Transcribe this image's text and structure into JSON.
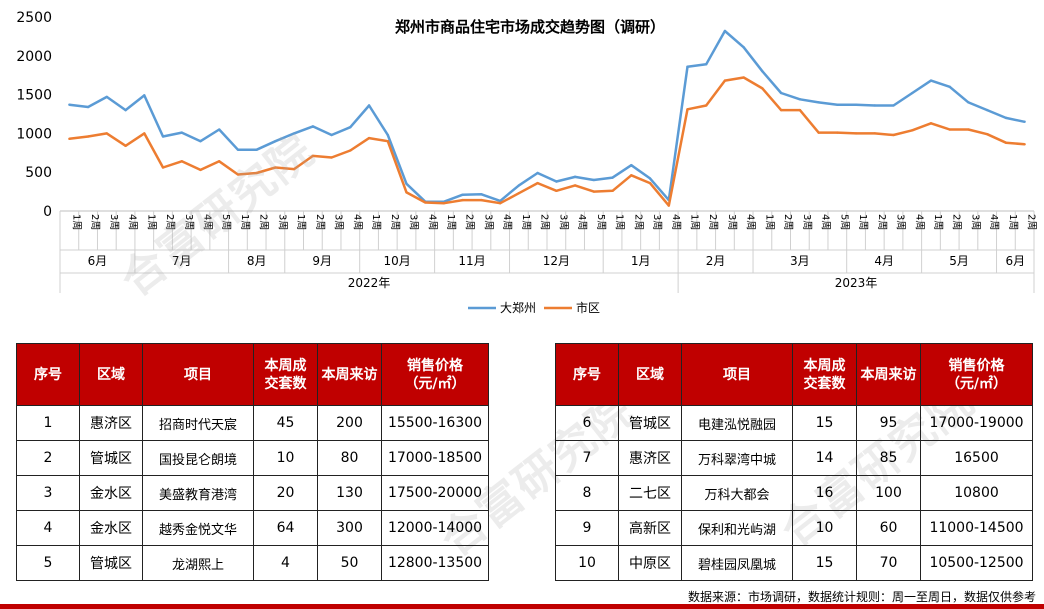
{
  "watermark": "合富研究院",
  "chart_data": {
    "type": "line",
    "title": "郑州市商品住宅市场成交趋势图（调研）",
    "ylim": [
      0,
      2500
    ],
    "yticks": [
      0,
      500,
      1000,
      1500,
      2000,
      2500
    ],
    "grid": false,
    "legend_position": "bottom",
    "week_labels": [
      "1周",
      "2周",
      "3周",
      "4周",
      "1周",
      "2周",
      "3周",
      "4周",
      "5周",
      "1周",
      "2周",
      "3周",
      "1周",
      "2周",
      "3周",
      "4周",
      "1周",
      "2周",
      "3周",
      "4周",
      "1周",
      "2周",
      "3周",
      "4周",
      "1周",
      "2周",
      "3周",
      "4周",
      "5周",
      "1周",
      "2周",
      "3周",
      "4周",
      "1周",
      "2周",
      "3周",
      "4周",
      "1周",
      "2周",
      "3周",
      "4周",
      "5周",
      "1周",
      "2周",
      "3周",
      "4周",
      "1周",
      "2周",
      "3周",
      "4周",
      "1周",
      "2周"
    ],
    "month_groups": [
      {
        "label": "6月",
        "count": 4
      },
      {
        "label": "7月",
        "count": 5
      },
      {
        "label": "8月",
        "count": 3
      },
      {
        "label": "9月",
        "count": 4
      },
      {
        "label": "10月",
        "count": 4
      },
      {
        "label": "11月",
        "count": 4
      },
      {
        "label": "12月",
        "count": 5
      },
      {
        "label": "1月",
        "count": 4
      },
      {
        "label": "2月",
        "count": 4
      },
      {
        "label": "3月",
        "count": 5
      },
      {
        "label": "4月",
        "count": 4
      },
      {
        "label": "5月",
        "count": 4
      },
      {
        "label": "6月",
        "count": 2
      }
    ],
    "year_groups": [
      {
        "label": "2022年",
        "count": 33
      },
      {
        "label": "2023年",
        "count": 19
      }
    ],
    "series": [
      {
        "name": "大郑州",
        "color": "#5b9bd5",
        "values": [
          1370,
          1340,
          1470,
          1300,
          1490,
          960,
          1010,
          900,
          1050,
          790,
          790,
          900,
          1000,
          1090,
          980,
          1080,
          1360,
          980,
          350,
          120,
          120,
          210,
          215,
          130,
          330,
          490,
          380,
          440,
          400,
          430,
          590,
          420,
          140,
          1860,
          1890,
          2320,
          2110,
          1800,
          1520,
          1440,
          1400,
          1370,
          1370,
          1360,
          1360,
          1520,
          1680,
          1600,
          1400,
          1300,
          1200,
          1150
        ]
      },
      {
        "name": "市区",
        "color": "#ed7d31",
        "values": [
          930,
          960,
          1000,
          840,
          1000,
          560,
          640,
          530,
          640,
          470,
          490,
          560,
          540,
          710,
          690,
          780,
          940,
          900,
          240,
          110,
          100,
          140,
          140,
          100,
          230,
          360,
          260,
          330,
          250,
          260,
          460,
          360,
          70,
          1310,
          1360,
          1680,
          1720,
          1580,
          1300,
          1300,
          1010,
          1010,
          1000,
          1000,
          980,
          1040,
          1130,
          1050,
          1050,
          990,
          880,
          860
        ]
      }
    ]
  },
  "table_headers": [
    "序号",
    "区域",
    "项目",
    "本周成交套数",
    "本周来访",
    "销售价格（元/㎡）"
  ],
  "table_header_lines": [
    [
      "序号"
    ],
    [
      "区域"
    ],
    [
      "项目"
    ],
    [
      "本周成",
      "交套数"
    ],
    [
      "本周来访"
    ],
    [
      "销售价格",
      "（元/㎡）"
    ]
  ],
  "table_left": [
    [
      "1",
      "惠济区",
      "招商时代天宸",
      "45",
      "200",
      "15500-16300"
    ],
    [
      "2",
      "管城区",
      "国投昆仑朗境",
      "10",
      "80",
      "17000-18500"
    ],
    [
      "3",
      "金水区",
      "美盛教育港湾",
      "20",
      "130",
      "17500-20000"
    ],
    [
      "4",
      "金水区",
      "越秀金悦文华",
      "64",
      "300",
      "12000-14000"
    ],
    [
      "5",
      "管城区",
      "龙湖熙上",
      "4",
      "50",
      "12800-13500"
    ]
  ],
  "table_right": [
    [
      "6",
      "管城区",
      "电建泓悦融园",
      "15",
      "95",
      "17000-19000"
    ],
    [
      "7",
      "惠济区",
      "万科翠湾中城",
      "14",
      "85",
      "16500"
    ],
    [
      "8",
      "二七区",
      "万科大都会",
      "16",
      "100",
      "10800"
    ],
    [
      "9",
      "高新区",
      "保利和光屿湖",
      "10",
      "60",
      "11000-14500"
    ],
    [
      "10",
      "中原区",
      "碧桂园凤凰城",
      "15",
      "70",
      "10500-12500"
    ]
  ],
  "footer": "数据来源：市场调研，数据统计规则：周一至周日，数据仅供参考",
  "colors": {
    "header_bg": "#c00000",
    "header_text": "#ffffff",
    "bar": "#c00000"
  }
}
